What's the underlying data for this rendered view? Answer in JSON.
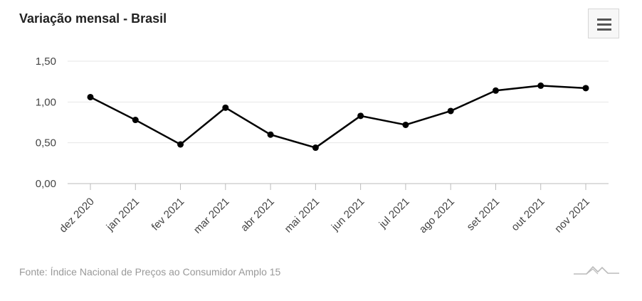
{
  "header": {
    "title": "Variação mensal - Brasil"
  },
  "menu": {
    "icon": "hamburger-menu-icon"
  },
  "footer": {
    "source": "Fonte: Índice Nacional de Preços ao Consumidor Amplo 15",
    "logo_icon": "mountain-logo-icon"
  },
  "chart_data": {
    "type": "line",
    "title": "Variação mensal - Brasil",
    "xlabel": "",
    "ylabel": "",
    "categories": [
      "dez 2020",
      "jan 2021",
      "fev 2021",
      "mar 2021",
      "abr 2021",
      "mai 2021",
      "jun 2021",
      "jul 2021",
      "ago 2021",
      "set 2021",
      "out 2021",
      "nov 2021"
    ],
    "series": [
      {
        "values": [
          1.06,
          0.78,
          0.48,
          0.93,
          0.6,
          0.44,
          0.83,
          0.72,
          0.89,
          1.14,
          1.2,
          1.17
        ]
      }
    ],
    "ylim": [
      0,
      1.5
    ],
    "yticks": [
      0,
      0.5,
      1.0,
      1.5
    ],
    "ytick_labels": [
      "0,00",
      "0,50",
      "1,00",
      "1,50"
    ],
    "grid": true,
    "legend": "none",
    "line_color": "#000000",
    "grid_color": "#e6e6e6"
  }
}
